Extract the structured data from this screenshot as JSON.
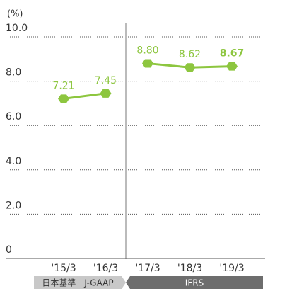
{
  "chart_data": {
    "type": "line",
    "y_unit": "(%)",
    "categories": [
      "'15/3",
      "'16/3",
      "'17/3",
      "'18/3",
      "'19/3"
    ],
    "series": [
      {
        "name": "日本基準　J-GAAP",
        "color": "#8dc63f",
        "values": [
          7.21,
          7.45,
          null,
          null,
          null
        ]
      },
      {
        "name": "IFRS",
        "color": "#8dc63f",
        "values": [
          null,
          null,
          8.8,
          8.62,
          8.67
        ]
      }
    ],
    "ylim": [
      0,
      10
    ],
    "yticks": [
      0,
      {
        "value": 2,
        "label": "2.0"
      },
      {
        "value": 4,
        "label": "4.0"
      },
      {
        "value": 6,
        "label": "6.0"
      },
      {
        "value": 8,
        "label": "8.0"
      },
      {
        "value": 10,
        "label": "10.0"
      }
    ],
    "grid": true
  }
}
